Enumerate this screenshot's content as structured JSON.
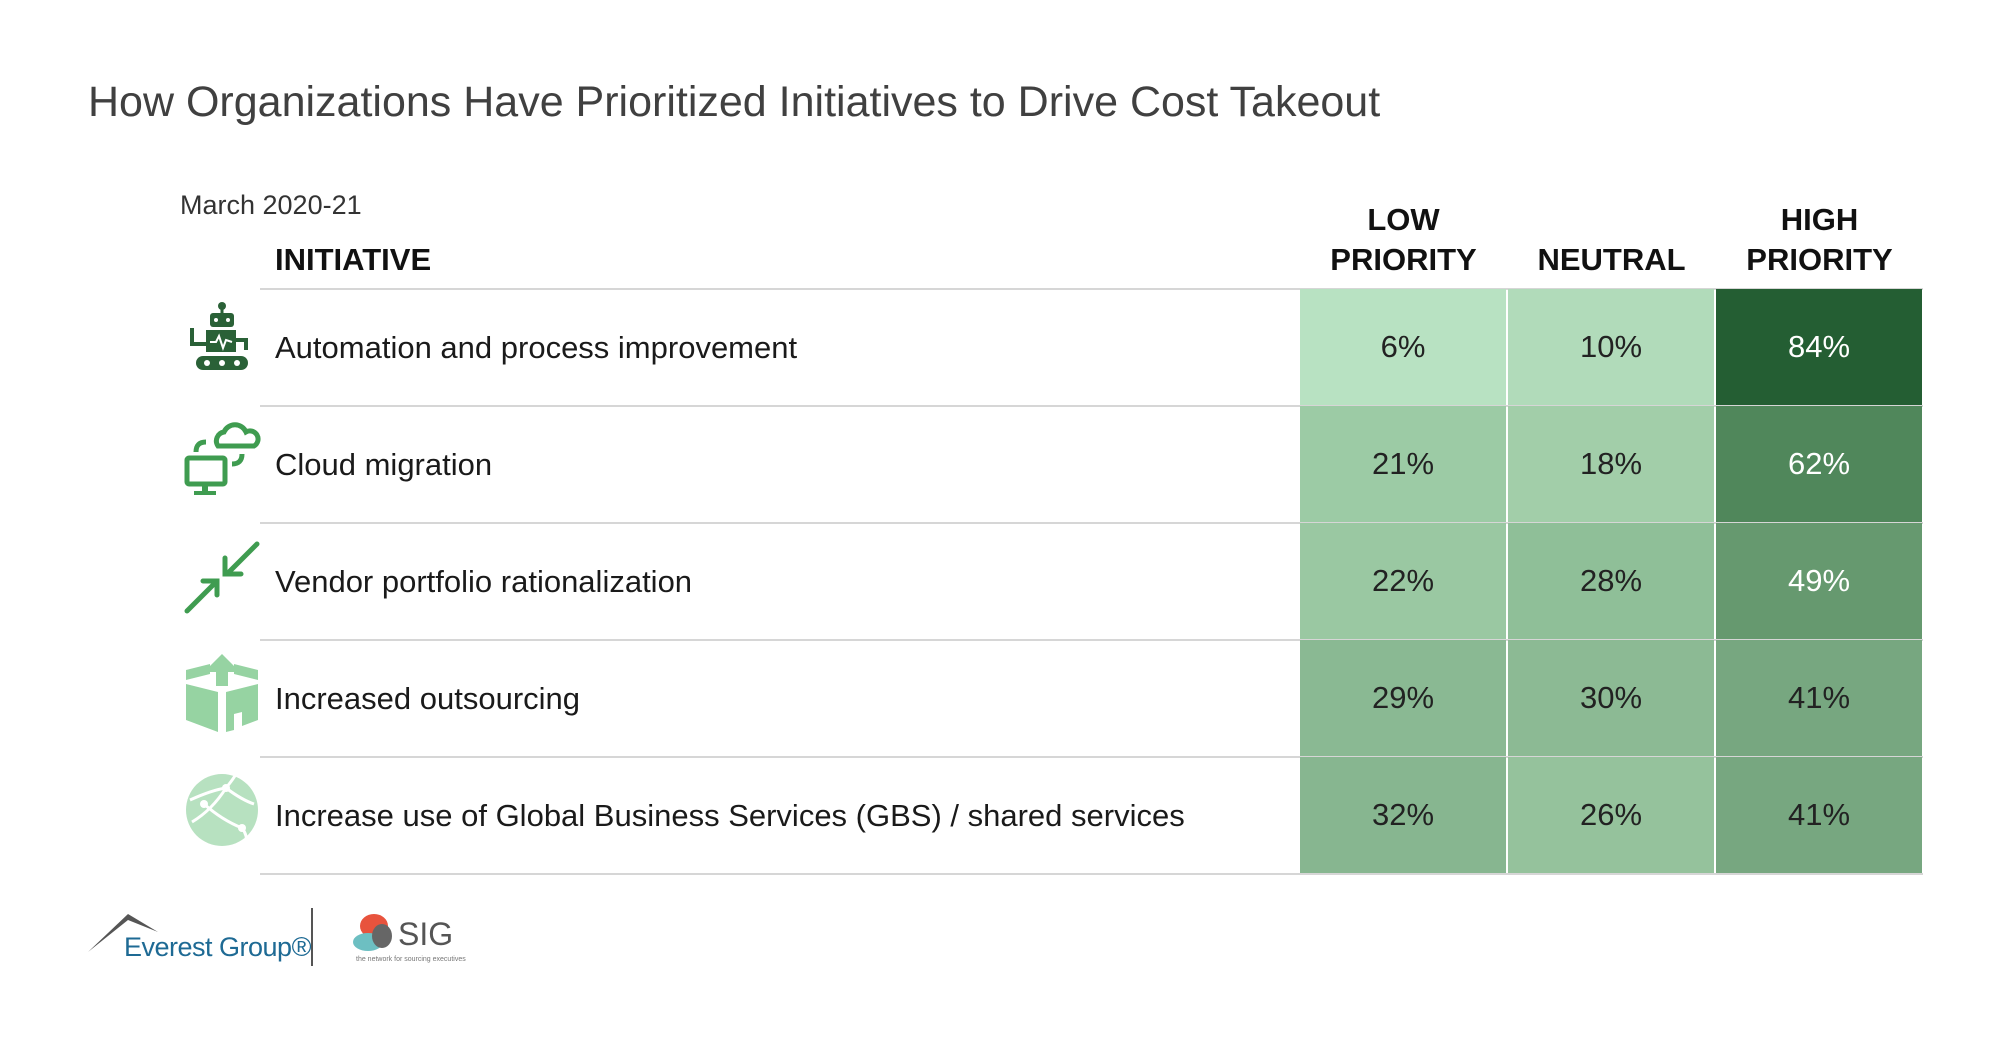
{
  "title": "How Organizations Have Prioritized Initiatives to Drive Cost Takeout",
  "subtitle": "March 2020-21",
  "chart_data": {
    "type": "table",
    "row_header": "INITIATIVE",
    "columns": [
      {
        "line1": "LOW",
        "line2": "PRIORITY"
      },
      {
        "line1": "",
        "line2": "NEUTRAL"
      },
      {
        "line1": "HIGH",
        "line2": "PRIORITY"
      }
    ],
    "rows": [
      {
        "icon": "robot-icon",
        "label": "Automation and process improvement",
        "values": [
          "6%",
          "10%",
          "84%"
        ],
        "colors": [
          "#b8e2c2",
          "#b1dbba",
          "#245e33"
        ],
        "text_colors": [
          "#222222",
          "#222222",
          "#ffffff"
        ]
      },
      {
        "icon": "cloud-migration-icon",
        "label": "Cloud migration",
        "values": [
          "21%",
          "18%",
          "62%"
        ],
        "colors": [
          "#9ccba5",
          "#a2cea9",
          "#50875b"
        ],
        "text_colors": [
          "#222222",
          "#222222",
          "#ffffff"
        ]
      },
      {
        "icon": "arrows-inward-icon",
        "label": "Vendor portfolio rationalization",
        "values": [
          "22%",
          "28%",
          "49%"
        ],
        "colors": [
          "#9ac8a2",
          "#8fbf98",
          "#66996f"
        ],
        "text_colors": [
          "#222222",
          "#222222",
          "#ffffff"
        ]
      },
      {
        "icon": "box-upload-icon",
        "label": "Increased outsourcing",
        "values": [
          "29%",
          "30%",
          "41%"
        ],
        "colors": [
          "#8ab993",
          "#8cba94",
          "#77a780"
        ],
        "text_colors": [
          "#222222",
          "#222222",
          "#222222"
        ]
      },
      {
        "icon": "globe-network-icon",
        "label": "Increase use of Global Business Services (GBS) / shared services",
        "values": [
          "32%",
          "26%",
          "41%"
        ],
        "colors": [
          "#87b690",
          "#95c29c",
          "#77a780"
        ],
        "text_colors": [
          "#222222",
          "#222222",
          "#222222"
        ]
      }
    ]
  },
  "footer": {
    "everest_logo": "Everest Group®",
    "sig_logo": "SIG",
    "sig_tagline": "the network for sourcing executives"
  }
}
